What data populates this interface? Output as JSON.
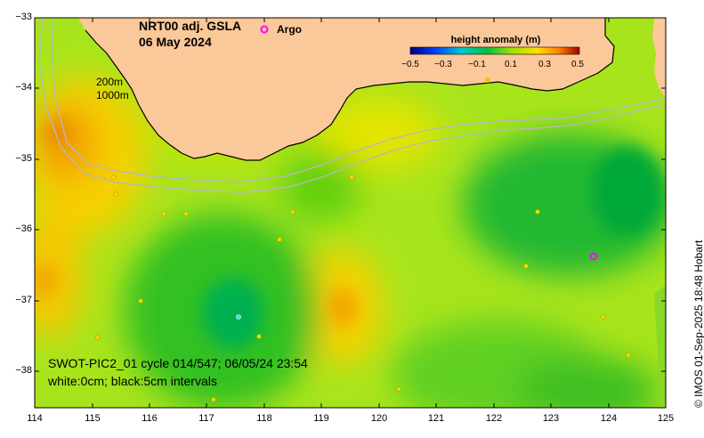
{
  "title": {
    "product": "NRT00 adj. GSLA",
    "date": "06 May 2024"
  },
  "argo": {
    "label": "Argo",
    "marker_color": "#ff00ff"
  },
  "legend": {
    "title": "height anomaly (m)",
    "ticks": [
      "−0.5",
      "−0.3",
      "−0.1",
      "0.1",
      "0.3",
      "0.5"
    ],
    "colors": [
      "#000080",
      "#0050ff",
      "#00c8c8",
      "#00c000",
      "#90e000",
      "#ffff00",
      "#ff9000",
      "#b00000"
    ]
  },
  "contour_labels": [
    "200m",
    "1000m"
  ],
  "info": {
    "line1": "SWOT-PIC2_01 cycle 014/547; 06/05/24 23:54",
    "line2": "white:0cm; black:5cm intervals"
  },
  "credit": "© IMOS 01-Sep-2025 18:48 Hobart",
  "axes": {
    "lat_ticks": [
      "−33",
      "−34",
      "−35",
      "−36",
      "−37",
      "−38"
    ],
    "lon_ticks": [
      "114",
      "115",
      "116",
      "117",
      "118",
      "119",
      "120",
      "121",
      "122",
      "123",
      "124",
      "125"
    ]
  },
  "colors": {
    "land": "#fbc89a",
    "sea_mid": "#9fe41a",
    "high": "#f7a400",
    "low": "#00a844"
  }
}
